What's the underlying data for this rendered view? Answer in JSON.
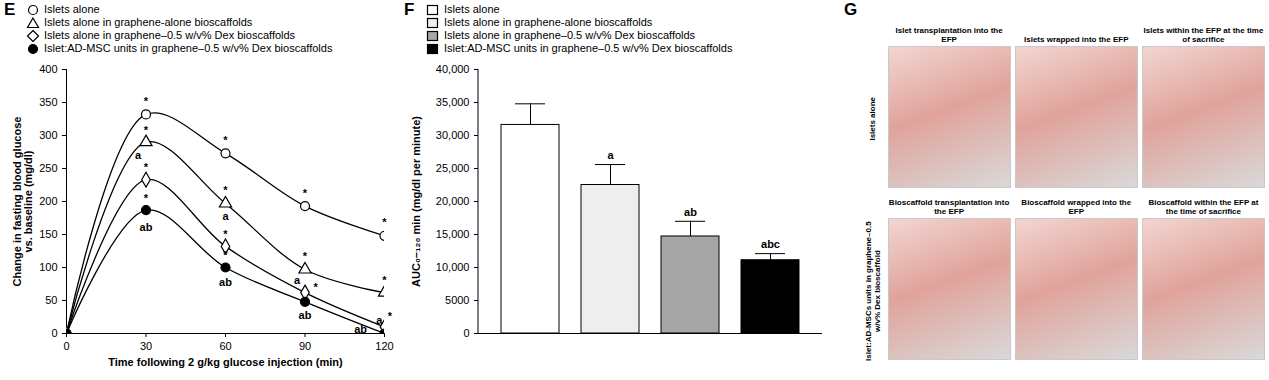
{
  "chart_data": [
    {
      "panel": "E",
      "type": "line",
      "xlabel": "Time following 2 g/kg glucose injection (min)",
      "ylabel": [
        "Change in fasting blood glucose",
        "vs. baseline (mg/dl)"
      ],
      "x": [
        0,
        30,
        60,
        90,
        120
      ],
      "xlim": [
        0,
        120
      ],
      "xticks": [
        0,
        30,
        60,
        90,
        120
      ],
      "ylim": [
        0,
        400
      ],
      "yticks": [
        0,
        50,
        100,
        150,
        200,
        250,
        300,
        350,
        400
      ],
      "legend": "top-left",
      "series": [
        {
          "name": "Islets alone",
          "color": "#000000",
          "marker": "circle-open",
          "values": [
            0,
            332,
            273,
            193,
            148
          ]
        },
        {
          "name": "Islets alone in graphene-alone bioscaffolds",
          "color": "#000000",
          "marker": "triangle-open",
          "values": [
            0,
            290,
            197,
            97,
            62
          ]
        },
        {
          "name": "Islets alone in graphene–0.5 w/v% Dex bioscaffolds",
          "color": "#000000",
          "marker": "diamond-open",
          "values": [
            0,
            233,
            132,
            62,
            10
          ]
        },
        {
          "name": "Islet:AD-MSC units in graphene–0.5 w/v% Dex bioscaffolds",
          "color": "#000000",
          "marker": "circle-filled",
          "values": [
            0,
            187,
            100,
            48,
            0
          ]
        }
      ],
      "annotations": [
        {
          "x": 30,
          "y": 352,
          "text": "*"
        },
        {
          "x": 30,
          "y": 308,
          "text": "*"
        },
        {
          "x": 27,
          "y": 270,
          "text": "a"
        },
        {
          "x": 30,
          "y": 252,
          "text": "*"
        },
        {
          "x": 30,
          "y": 205,
          "text": "*"
        },
        {
          "x": 30,
          "y": 160,
          "text": "ab"
        },
        {
          "x": 60,
          "y": 293,
          "text": "*"
        },
        {
          "x": 60,
          "y": 217,
          "text": "*"
        },
        {
          "x": 60,
          "y": 178,
          "text": "a"
        },
        {
          "x": 60,
          "y": 150,
          "text": "*"
        },
        {
          "x": 60,
          "y": 118,
          "text": "*"
        },
        {
          "x": 60,
          "y": 78,
          "text": "ab"
        },
        {
          "x": 90,
          "y": 212,
          "text": "*"
        },
        {
          "x": 90,
          "y": 116,
          "text": "*"
        },
        {
          "x": 87,
          "y": 80,
          "text": "a"
        },
        {
          "x": 94,
          "y": 70,
          "text": "*"
        },
        {
          "x": 90,
          "y": 27,
          "text": "ab"
        },
        {
          "x": 120,
          "y": 168,
          "text": "*"
        },
        {
          "x": 120,
          "y": 81,
          "text": "*"
        },
        {
          "x": 122,
          "y": 26,
          "text": "*"
        },
        {
          "x": 118,
          "y": 20,
          "text": "a"
        },
        {
          "x": 111,
          "y": 6,
          "text": "ab"
        }
      ]
    },
    {
      "panel": "F",
      "type": "bar",
      "ylabel": "AUC₀–₁₂₀ min (mg/dl per minute)",
      "categories": [
        "Islets alone",
        "Islets alone in graphene-alone bioscaffolds",
        "Islets alone in graphene–0.5 w/v% Dex bioscaffolds",
        "Islet:AD-MSC units in graphene–0.5 w/v% Dex bioscaffolds"
      ],
      "values": [
        31600,
        22500,
        14700,
        11100
      ],
      "errors": [
        3200,
        3100,
        2300,
        1000
      ],
      "significance": [
        null,
        "a",
        "ab",
        "abc"
      ],
      "colors": [
        "#ffffff",
        "#eeeeee",
        "#a6a6a6",
        "#000000"
      ],
      "ylim": [
        0,
        40000
      ],
      "yticks": [
        0,
        5000,
        {
          "value": 10000,
          "label": "10,000"
        },
        {
          "value": 15000,
          "label": "15,000"
        },
        {
          "value": 20000,
          "label": "20,000"
        },
        {
          "value": 25000,
          "label": "25,000"
        },
        {
          "value": 30000,
          "label": "30,000"
        },
        {
          "value": 35000,
          "label": "35,000"
        },
        {
          "value": 40000,
          "label": "40,000"
        }
      ],
      "tick_labels": "y",
      "legend": "top-left"
    }
  ],
  "panel_G": {
    "panel": "G",
    "rows": [
      {
        "label": "Islets alone",
        "captions": [
          "Islet transplantation into the EFP",
          "Islets wrapped into the EFP",
          "Islets within the EFP at the time of sacrifice"
        ]
      },
      {
        "label": "Islet:AD-MSCs units in graphene–0.5 w/v% Dex bioscaffold",
        "captions": [
          "Bioscaffold transplantation into the EFP",
          "Bioscaffold wrapped into the EFP",
          "Bioscaffold within the EFP at the time of sacrifice"
        ]
      }
    ]
  }
}
